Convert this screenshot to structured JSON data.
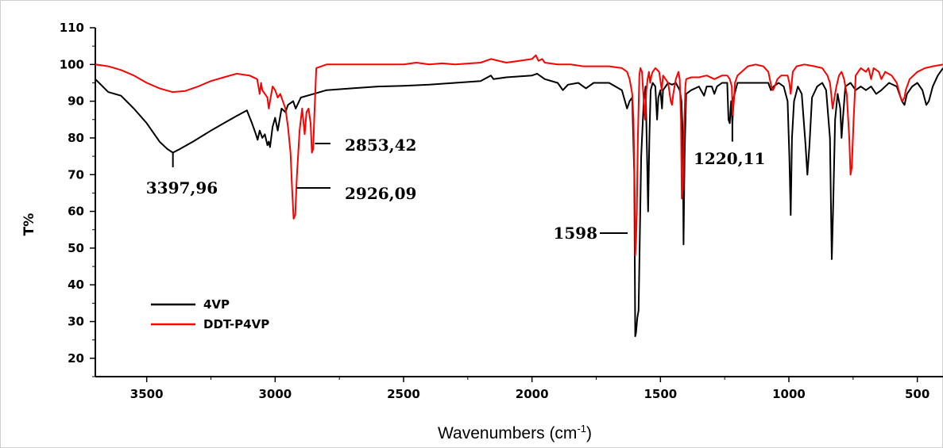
{
  "chart_data": {
    "type": "line",
    "xlabel": "Wavenumbers (cm",
    "xlabel_sup": "-1",
    "xlabel_close": ")",
    "ylabel": "T%",
    "xlim": [
      3700,
      400
    ],
    "ylim": [
      15,
      110
    ],
    "x_reversed": true,
    "x_ticks": [
      3500,
      3000,
      2500,
      2000,
      1500,
      1000,
      500
    ],
    "y_ticks": [
      20,
      30,
      40,
      50,
      60,
      70,
      80,
      90,
      100,
      110
    ],
    "legend_position": "bottom-left",
    "series": [
      {
        "name": "4VP",
        "color": "#000000",
        "points": [
          [
            3700,
            96
          ],
          [
            3650,
            92.5
          ],
          [
            3600,
            91.5
          ],
          [
            3550,
            88
          ],
          [
            3500,
            84
          ],
          [
            3450,
            79
          ],
          [
            3420,
            77
          ],
          [
            3398,
            76
          ],
          [
            3370,
            77
          ],
          [
            3320,
            79
          ],
          [
            3250,
            82
          ],
          [
            3200,
            84
          ],
          [
            3150,
            86
          ],
          [
            3110,
            87.5
          ],
          [
            3090,
            84
          ],
          [
            3075,
            81
          ],
          [
            3068,
            79.5
          ],
          [
            3060,
            82
          ],
          [
            3050,
            80
          ],
          [
            3040,
            81
          ],
          [
            3030,
            78
          ],
          [
            3025,
            79
          ],
          [
            3020,
            77.5
          ],
          [
            3010,
            83
          ],
          [
            3000,
            85.5
          ],
          [
            2990,
            82
          ],
          [
            2975,
            88
          ],
          [
            2960,
            87
          ],
          [
            2950,
            89
          ],
          [
            2930,
            90
          ],
          [
            2920,
            88
          ],
          [
            2900,
            91
          ],
          [
            2850,
            92
          ],
          [
            2800,
            93
          ],
          [
            2700,
            93.5
          ],
          [
            2600,
            94
          ],
          [
            2500,
            94.2
          ],
          [
            2400,
            94.5
          ],
          [
            2300,
            95
          ],
          [
            2200,
            95.5
          ],
          [
            2160,
            97
          ],
          [
            2150,
            96
          ],
          [
            2100,
            96.5
          ],
          [
            2000,
            97
          ],
          [
            1980,
            97.5
          ],
          [
            1950,
            96
          ],
          [
            1900,
            95
          ],
          [
            1880,
            93
          ],
          [
            1860,
            94.5
          ],
          [
            1820,
            95
          ],
          [
            1790,
            93.5
          ],
          [
            1760,
            95
          ],
          [
            1700,
            95
          ],
          [
            1650,
            93
          ],
          [
            1630,
            88
          ],
          [
            1620,
            90
          ],
          [
            1610,
            91
          ],
          [
            1602,
            70
          ],
          [
            1598,
            26
          ],
          [
            1595,
            27
          ],
          [
            1590,
            31
          ],
          [
            1585,
            33
          ],
          [
            1575,
            75
          ],
          [
            1565,
            90
          ],
          [
            1558,
            94
          ],
          [
            1552,
            75
          ],
          [
            1548,
            60
          ],
          [
            1543,
            80
          ],
          [
            1538,
            93
          ],
          [
            1530,
            95
          ],
          [
            1520,
            94
          ],
          [
            1513,
            85
          ],
          [
            1508,
            91
          ],
          [
            1500,
            93
          ],
          [
            1494,
            88
          ],
          [
            1490,
            93
          ],
          [
            1470,
            95
          ],
          [
            1455,
            94.5
          ],
          [
            1440,
            95
          ],
          [
            1425,
            93
          ],
          [
            1418,
            90
          ],
          [
            1413,
            80
          ],
          [
            1410,
            51
          ],
          [
            1406,
            75
          ],
          [
            1400,
            92
          ],
          [
            1380,
            93
          ],
          [
            1350,
            94
          ],
          [
            1330,
            91.5
          ],
          [
            1320,
            94
          ],
          [
            1300,
            94
          ],
          [
            1290,
            92
          ],
          [
            1280,
            94
          ],
          [
            1260,
            95
          ],
          [
            1240,
            95
          ],
          [
            1235,
            85
          ],
          [
            1230,
            84
          ],
          [
            1225,
            90
          ],
          [
            1220,
            84
          ],
          [
            1215,
            91
          ],
          [
            1200,
            95
          ],
          [
            1160,
            95
          ],
          [
            1100,
            95
          ],
          [
            1080,
            95
          ],
          [
            1070,
            93
          ],
          [
            1060,
            94
          ],
          [
            1040,
            95
          ],
          [
            1020,
            94
          ],
          [
            1005,
            90
          ],
          [
            998,
            75
          ],
          [
            993,
            59
          ],
          [
            988,
            80
          ],
          [
            980,
            90
          ],
          [
            965,
            94
          ],
          [
            950,
            92
          ],
          [
            935,
            78
          ],
          [
            928,
            70
          ],
          [
            920,
            78
          ],
          [
            910,
            91
          ],
          [
            890,
            94
          ],
          [
            870,
            95
          ],
          [
            855,
            93
          ],
          [
            840,
            80
          ],
          [
            833,
            47
          ],
          [
            828,
            60
          ],
          [
            820,
            85
          ],
          [
            810,
            92
          ],
          [
            800,
            88
          ],
          [
            795,
            80
          ],
          [
            790,
            85
          ],
          [
            780,
            94
          ],
          [
            760,
            95
          ],
          [
            740,
            93
          ],
          [
            720,
            94
          ],
          [
            700,
            93
          ],
          [
            680,
            94
          ],
          [
            660,
            92
          ],
          [
            640,
            93
          ],
          [
            610,
            95
          ],
          [
            580,
            94
          ],
          [
            560,
            90
          ],
          [
            550,
            89
          ],
          [
            540,
            92
          ],
          [
            520,
            94
          ],
          [
            500,
            95
          ],
          [
            480,
            93
          ],
          [
            465,
            89
          ],
          [
            455,
            90
          ],
          [
            440,
            94
          ],
          [
            420,
            97
          ],
          [
            400,
            99
          ]
        ]
      },
      {
        "name": "DDT-P4VP",
        "color": "#ff0000",
        "points": [
          [
            3700,
            100
          ],
          [
            3650,
            99.5
          ],
          [
            3600,
            98.5
          ],
          [
            3550,
            97
          ],
          [
            3500,
            95
          ],
          [
            3450,
            93.5
          ],
          [
            3400,
            92.5
          ],
          [
            3350,
            92.8
          ],
          [
            3300,
            94
          ],
          [
            3250,
            95.5
          ],
          [
            3200,
            96.5
          ],
          [
            3150,
            97.5
          ],
          [
            3100,
            97
          ],
          [
            3070,
            96
          ],
          [
            3060,
            92
          ],
          [
            3055,
            95
          ],
          [
            3050,
            93
          ],
          [
            3040,
            92
          ],
          [
            3030,
            91
          ],
          [
            3025,
            88
          ],
          [
            3020,
            90
          ],
          [
            3010,
            94
          ],
          [
            3000,
            93
          ],
          [
            2990,
            91
          ],
          [
            2980,
            92
          ],
          [
            2970,
            90
          ],
          [
            2960,
            88
          ],
          [
            2950,
            83
          ],
          [
            2940,
            76
          ],
          [
            2934,
            66
          ],
          [
            2928,
            58
          ],
          [
            2922,
            59
          ],
          [
            2915,
            70
          ],
          [
            2905,
            82
          ],
          [
            2895,
            88
          ],
          [
            2885,
            81
          ],
          [
            2878,
            87
          ],
          [
            2870,
            88
          ],
          [
            2862,
            84
          ],
          [
            2857,
            76
          ],
          [
            2852,
            77
          ],
          [
            2848,
            85
          ],
          [
            2840,
            99
          ],
          [
            2800,
            100
          ],
          [
            2750,
            100
          ],
          [
            2700,
            100
          ],
          [
            2600,
            100
          ],
          [
            2500,
            100
          ],
          [
            2450,
            100.5
          ],
          [
            2400,
            100
          ],
          [
            2350,
            100.3
          ],
          [
            2300,
            100
          ],
          [
            2200,
            100.5
          ],
          [
            2160,
            101.5
          ],
          [
            2100,
            100.5
          ],
          [
            2050,
            101
          ],
          [
            2000,
            101.5
          ],
          [
            1985,
            102.5
          ],
          [
            1975,
            101
          ],
          [
            1960,
            101.5
          ],
          [
            1950,
            100.5
          ],
          [
            1900,
            100
          ],
          [
            1850,
            100
          ],
          [
            1800,
            99.5
          ],
          [
            1750,
            99.5
          ],
          [
            1700,
            99.5
          ],
          [
            1650,
            99
          ],
          [
            1630,
            98
          ],
          [
            1620,
            96
          ],
          [
            1610,
            92
          ],
          [
            1605,
            85
          ],
          [
            1600,
            65
          ],
          [
            1598,
            48
          ],
          [
            1595,
            52
          ],
          [
            1592,
            60
          ],
          [
            1588,
            80
          ],
          [
            1582,
            97
          ],
          [
            1578,
            99
          ],
          [
            1572,
            98
          ],
          [
            1565,
            90
          ],
          [
            1560,
            85
          ],
          [
            1555,
            93
          ],
          [
            1550,
            96
          ],
          [
            1545,
            98
          ],
          [
            1540,
            95
          ],
          [
            1535,
            97
          ],
          [
            1530,
            98
          ],
          [
            1520,
            99
          ],
          [
            1505,
            98
          ],
          [
            1495,
            93
          ],
          [
            1490,
            97
          ],
          [
            1480,
            96
          ],
          [
            1470,
            95
          ],
          [
            1460,
            90
          ],
          [
            1455,
            89
          ],
          [
            1450,
            92
          ],
          [
            1440,
            96
          ],
          [
            1430,
            98
          ],
          [
            1425,
            96
          ],
          [
            1420,
            85
          ],
          [
            1417,
            63.5
          ],
          [
            1413,
            66
          ],
          [
            1408,
            82
          ],
          [
            1403,
            94
          ],
          [
            1400,
            96
          ],
          [
            1380,
            96.5
          ],
          [
            1350,
            96.5
          ],
          [
            1320,
            97
          ],
          [
            1290,
            96
          ],
          [
            1260,
            97
          ],
          [
            1240,
            97
          ],
          [
            1230,
            96
          ],
          [
            1222,
            94
          ],
          [
            1219,
            86
          ],
          [
            1214,
            90
          ],
          [
            1210,
            95
          ],
          [
            1200,
            97
          ],
          [
            1160,
            99.5
          ],
          [
            1130,
            100
          ],
          [
            1100,
            99.5
          ],
          [
            1080,
            98
          ],
          [
            1068,
            94
          ],
          [
            1062,
            93
          ],
          [
            1055,
            94
          ],
          [
            1045,
            96
          ],
          [
            1030,
            97
          ],
          [
            1015,
            97
          ],
          [
            1005,
            97
          ],
          [
            998,
            95
          ],
          [
            993,
            92
          ],
          [
            985,
            98
          ],
          [
            970,
            99.5
          ],
          [
            940,
            100
          ],
          [
            900,
            99.5
          ],
          [
            870,
            99
          ],
          [
            850,
            97
          ],
          [
            840,
            95
          ],
          [
            835,
            92
          ],
          [
            830,
            88
          ],
          [
            825,
            90
          ],
          [
            815,
            94
          ],
          [
            805,
            97
          ],
          [
            795,
            98
          ],
          [
            785,
            96
          ],
          [
            775,
            92
          ],
          [
            765,
            80
          ],
          [
            760,
            70
          ],
          [
            755,
            72
          ],
          [
            748,
            85
          ],
          [
            740,
            97
          ],
          [
            720,
            99
          ],
          [
            700,
            98
          ],
          [
            690,
            99
          ],
          [
            680,
            96
          ],
          [
            670,
            99
          ],
          [
            650,
            98
          ],
          [
            640,
            96
          ],
          [
            625,
            98
          ],
          [
            600,
            97
          ],
          [
            580,
            95
          ],
          [
            565,
            91
          ],
          [
            558,
            90
          ],
          [
            550,
            91
          ],
          [
            545,
            93
          ],
          [
            530,
            96
          ],
          [
            500,
            98
          ],
          [
            470,
            99
          ],
          [
            440,
            99.5
          ],
          [
            400,
            100
          ]
        ]
      }
    ],
    "annotations": [
      {
        "text": "3397,96"
      },
      {
        "text": "2926,09"
      },
      {
        "text": "2853,42"
      },
      {
        "text": "1598"
      },
      {
        "text": "1220,11"
      }
    ]
  }
}
